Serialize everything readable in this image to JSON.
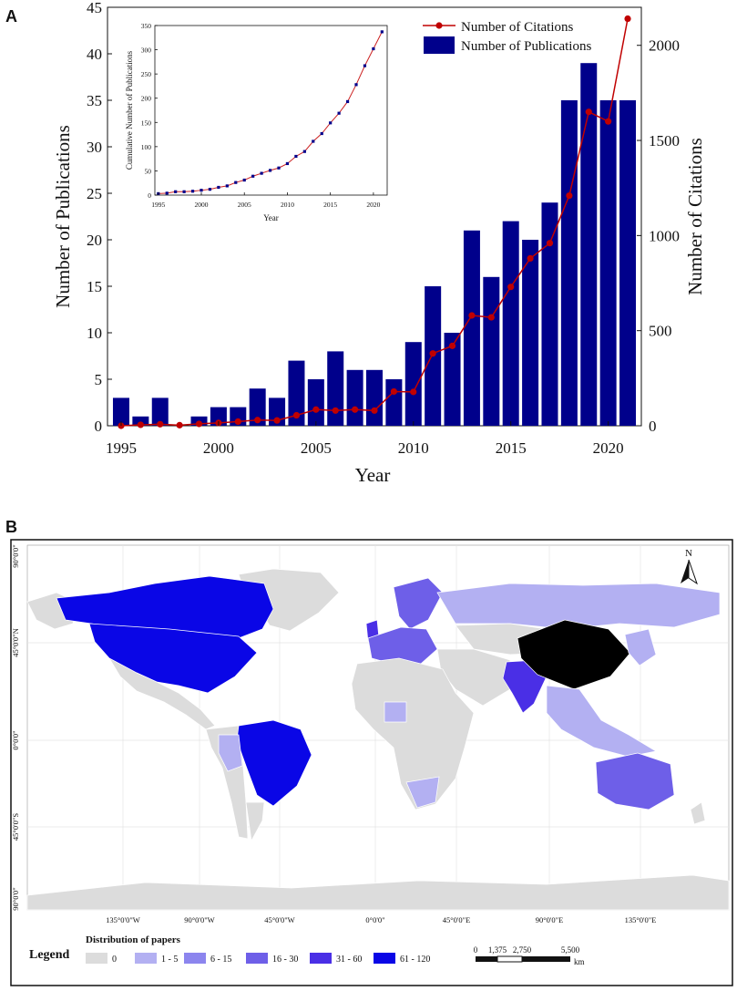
{
  "panel_a": {
    "letter": "A"
  },
  "panel_b": {
    "letter": "B"
  },
  "chart_data": [
    {
      "type": "bar+line",
      "title": "",
      "xlabel": "Year",
      "ylabel": "Number of Publications",
      "y2label": "Number of Citations",
      "categories": [
        1995,
        1996,
        1997,
        1998,
        1999,
        2000,
        2001,
        2002,
        2003,
        2004,
        2005,
        2006,
        2007,
        2008,
        2009,
        2010,
        2011,
        2012,
        2013,
        2014,
        2015,
        2016,
        2017,
        2018,
        2019,
        2020,
        2021
      ],
      "x_ticks": [
        "1995",
        "2000",
        "2005",
        "2010",
        "2015",
        "2020"
      ],
      "y_ticks": [
        "0",
        "5",
        "10",
        "15",
        "20",
        "25",
        "30",
        "35",
        "40",
        "45"
      ],
      "y2_ticks": [
        "0",
        "500",
        "1000",
        "1500",
        "2000"
      ],
      "ylim": [
        0,
        45
      ],
      "y2lim": [
        0,
        2200
      ],
      "series": [
        {
          "name": "Number of Publications",
          "type": "bar",
          "axis": "left",
          "color": "#00008b",
          "values": [
            3,
            1,
            3,
            0,
            1,
            2,
            2,
            4,
            3,
            7,
            5,
            8,
            6,
            6,
            5,
            9,
            15,
            10,
            21,
            16,
            22,
            20,
            24,
            35,
            39,
            35,
            35
          ]
        },
        {
          "name": "Number of Citations",
          "type": "line",
          "axis": "right",
          "color": "#c00000",
          "values": [
            0,
            5,
            8,
            3,
            10,
            15,
            22,
            30,
            28,
            55,
            85,
            80,
            85,
            80,
            180,
            178,
            380,
            420,
            580,
            570,
            730,
            880,
            960,
            1210,
            1650,
            1600,
            2140
          ]
        }
      ],
      "legend": [
        "Number of Citations",
        "Number of Publications"
      ],
      "legend_position": "top-right"
    },
    {
      "type": "line",
      "title": "",
      "xlabel": "Year",
      "ylabel": "Cumulative Number of Publications",
      "x": [
        1995,
        1996,
        1997,
        1998,
        1999,
        2000,
        2001,
        2002,
        2003,
        2004,
        2005,
        2006,
        2007,
        2008,
        2009,
        2010,
        2011,
        2012,
        2013,
        2014,
        2015,
        2016,
        2017,
        2018,
        2019,
        2020,
        2021
      ],
      "values": [
        3,
        4,
        7,
        7,
        8,
        10,
        12,
        16,
        19,
        26,
        31,
        39,
        45,
        51,
        56,
        65,
        80,
        90,
        111,
        127,
        149,
        169,
        193,
        228,
        267,
        302,
        337
      ],
      "x_ticks": [
        "1995",
        "2000",
        "2005",
        "2010",
        "2015",
        "2020"
      ],
      "y_ticks": [
        "0",
        "50",
        "100",
        "150",
        "200",
        "250",
        "300",
        "350"
      ],
      "ylim": [
        0,
        350
      ],
      "color": "#00008b"
    }
  ],
  "map": {
    "lat_labels": [
      "90°0'0\"",
      "45°0'0\"N",
      "0°0'0\"",
      "45°0'0\"S",
      "90°0'0\""
    ],
    "lon_labels": [
      "135°0'0\"W",
      "90°0'0\"W",
      "45°0'0\"W",
      "0°0'0\"",
      "45°0'0\"E",
      "90°0'0\"E",
      "135°0'0\"E"
    ],
    "north": "N",
    "legend_title": "Legend",
    "legend_subtitle": "Distribution of papers",
    "legend_items": [
      {
        "label": "0",
        "color": "#dcdcdc"
      },
      {
        "label": "1 - 5",
        "color": "#b3b0f2"
      },
      {
        "label": "6 - 15",
        "color": "#8c85ee"
      },
      {
        "label": "16 - 30",
        "color": "#6e5fe8"
      },
      {
        "label": "31 - 60",
        "color": "#4a2fe6"
      },
      {
        "label": "61 - 120",
        "color": "#0a06e6"
      }
    ],
    "scale_labels": [
      "0",
      "1,375",
      "2,750",
      "5,500"
    ],
    "scale_unit": "km"
  }
}
